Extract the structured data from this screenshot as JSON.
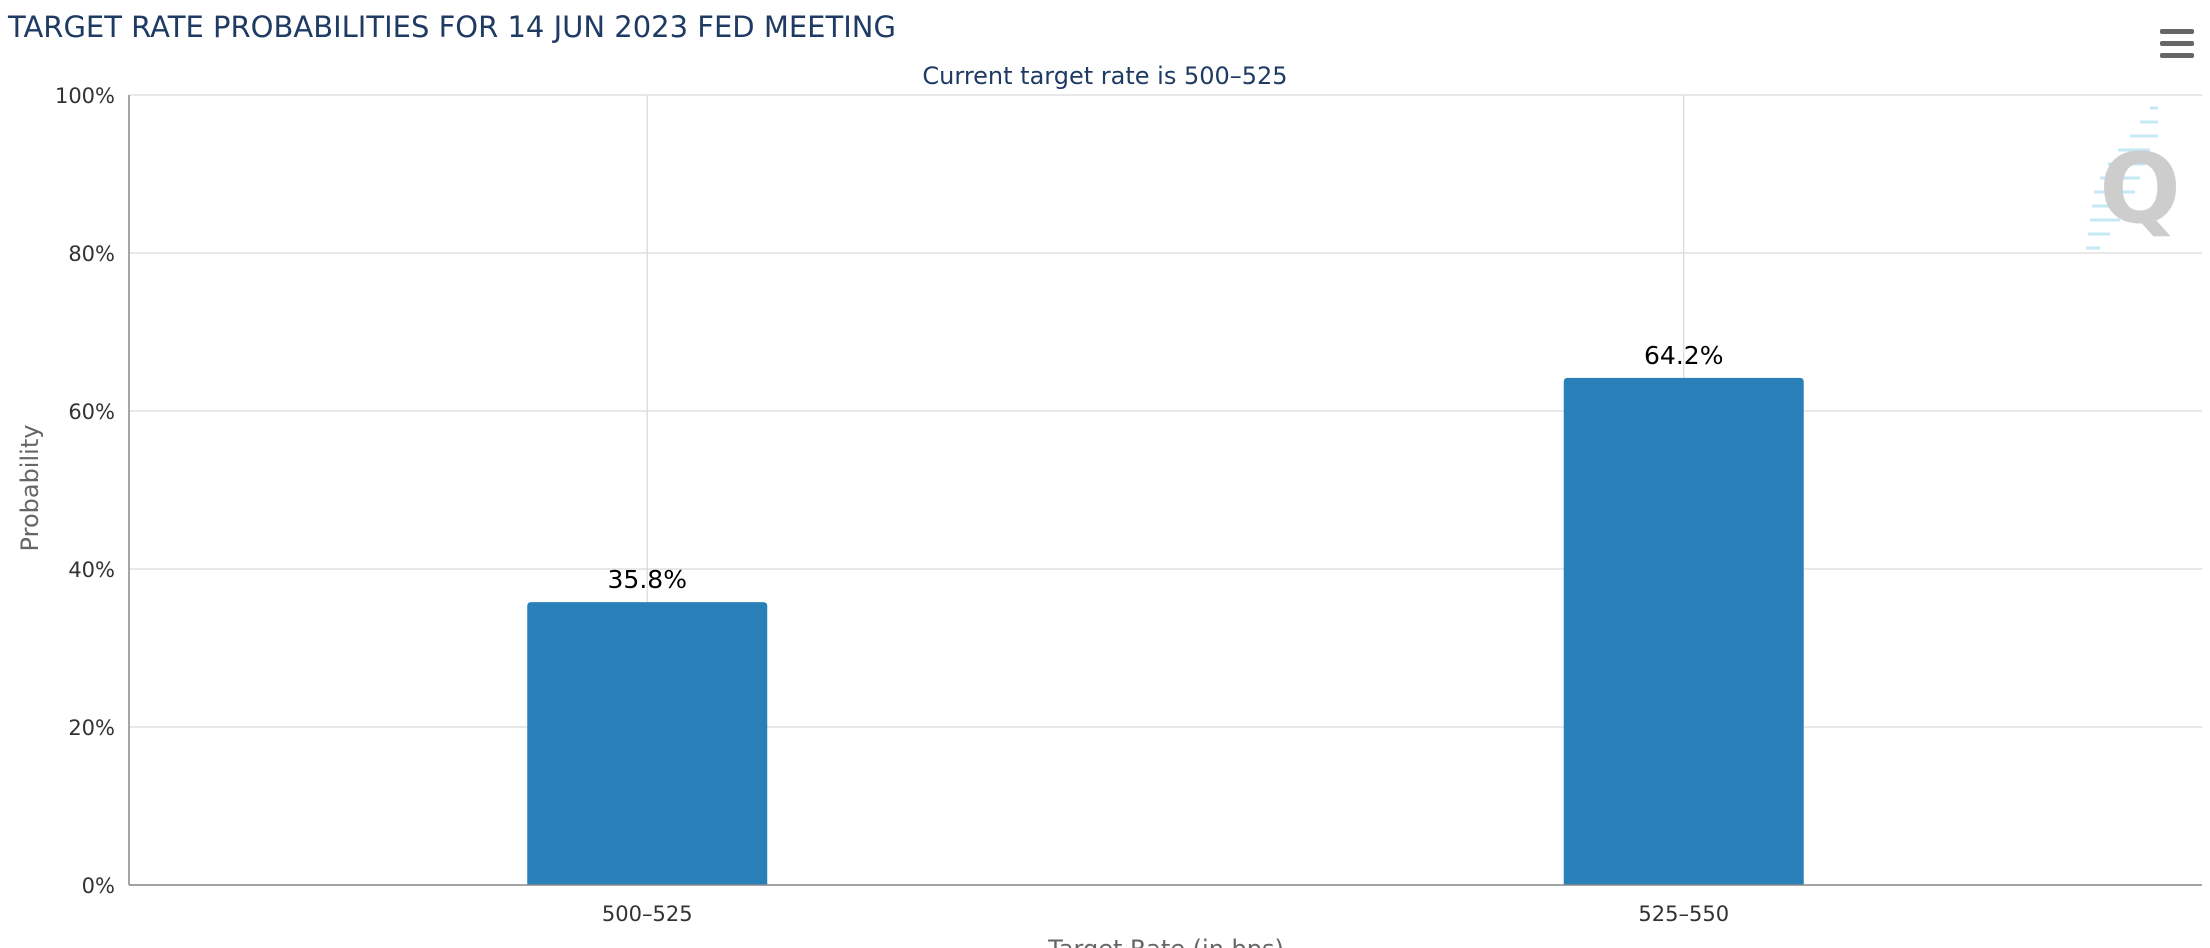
{
  "chart_data": {
    "type": "bar",
    "title": "TARGET RATE PROBABILITIES FOR 14 JUN 2023 FED MEETING",
    "subtitle": "Current target rate is 500–525",
    "xlabel": "Target Rate (in bps)",
    "ylabel": "Probability",
    "categories": [
      "500–525",
      "525–550"
    ],
    "values": [
      35.8,
      64.2
    ],
    "data_labels": [
      "35.8%",
      "64.2%"
    ],
    "ylim": [
      0,
      100
    ],
    "yticks": [
      0,
      20,
      40,
      60,
      80,
      100
    ],
    "ytick_labels": [
      "0%",
      "20%",
      "40%",
      "60%",
      "80%",
      "100%"
    ],
    "grid": true,
    "legend": "none"
  },
  "colors": {
    "bar": "#2980b9",
    "title": "#1f3b64",
    "grid": "#d9d9d9",
    "axis": "#888888",
    "menu_icon": "#666666"
  },
  "icons": {
    "menu": "hamburger-menu-icon",
    "watermark": "quikstrike-logo"
  }
}
